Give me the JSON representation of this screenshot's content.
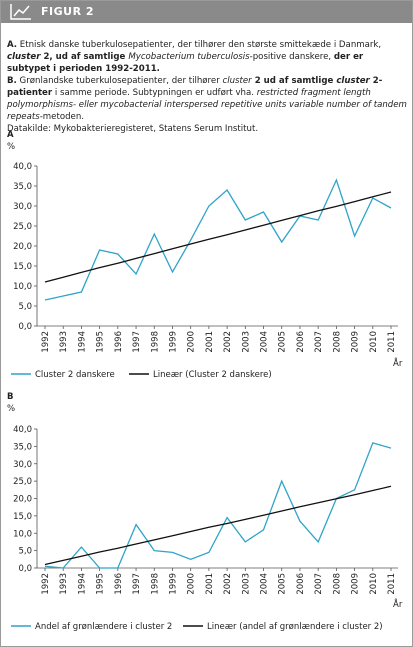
{
  "header": {
    "title": "FIGUR 2"
  },
  "caption": {
    "paragraphs": [
      {
        "runs": [
          {
            "text": "A.",
            "style": "bold"
          },
          {
            "text": " Etnisk danske tuberkulosepatienter, der tilhører den største smittekæde i Danmark, ",
            "style": "normal"
          },
          {
            "text": "cluster",
            "style": "bold-italic"
          },
          {
            "text": " 2, ud af samtlige ",
            "style": "bold"
          },
          {
            "text": "Mycobacterium tuberculosis",
            "style": "italic"
          },
          {
            "text": "-positive danskere, ",
            "style": "normal"
          },
          {
            "text": "der er subtypet i perioden 1992-2011.",
            "style": "bold"
          }
        ]
      },
      {
        "runs": [
          {
            "text": "B.",
            "style": "bold"
          },
          {
            "text": " Grønlandske tuberkulosepatienter, der tilhører ",
            "style": "normal"
          },
          {
            "text": "cluster",
            "style": "italic"
          },
          {
            "text": " 2 ud af samtlige ",
            "style": "bold"
          },
          {
            "text": "cluster",
            "style": "bold-italic"
          },
          {
            "text": " 2-patienter",
            "style": "bold"
          },
          {
            "text": " i samme periode. Subtypningen er udført vha. ",
            "style": "normal"
          },
          {
            "text": "restricted fragment length polymorphisms- eller mycobacterial interspersed repetitive units variable number of tandem repeats",
            "style": "italic"
          },
          {
            "text": "-metoden.",
            "style": "normal"
          }
        ]
      },
      {
        "runs": [
          {
            "text": "Datakilde: Mykobakterieregisteret, Statens Serum Institut.",
            "style": "normal"
          }
        ]
      }
    ]
  },
  "chart_data": [
    {
      "type": "line",
      "panel_label": "A",
      "y_label": "%",
      "x_label": "År",
      "categories": [
        "1992",
        "1993",
        "1994",
        "1995",
        "1996",
        "1997",
        "1998",
        "1999",
        "2000",
        "2001",
        "2002",
        "2003",
        "2004",
        "2005",
        "2006",
        "2007",
        "2008",
        "2009",
        "2010",
        "2011"
      ],
      "ylim": [
        0,
        40
      ],
      "yticks": [
        {
          "value": 0,
          "label": "0,0"
        },
        {
          "value": 5,
          "label": "5,0"
        },
        {
          "value": 10,
          "label": "10,0"
        },
        {
          "value": 15,
          "label": "15,0"
        },
        {
          "value": 20,
          "label": "20,0"
        },
        {
          "value": 25,
          "label": "25,0"
        },
        {
          "value": 30,
          "label": "30,0"
        },
        {
          "value": 35,
          "label": "35,0"
        },
        {
          "value": 40,
          "label": "40,0"
        }
      ],
      "series": [
        {
          "name": "Cluster 2 danskere",
          "color": "#2fa3c9",
          "values": [
            6.5,
            7.5,
            8.5,
            19,
            18,
            13,
            23,
            13.5,
            21.5,
            30,
            34,
            26.5,
            28.5,
            21,
            27.5,
            26.5,
            36.5,
            22.5,
            32,
            29.5
          ]
        },
        {
          "name": "Lineær (Cluster 2 danskere)",
          "color": "#111111",
          "values": [
            11.0,
            12.2,
            13.4,
            14.6,
            15.7,
            16.9,
            18.1,
            19.3,
            20.5,
            21.7,
            22.8,
            24.0,
            25.2,
            26.4,
            27.6,
            28.8,
            29.9,
            31.1,
            32.3,
            33.5
          ]
        }
      ]
    },
    {
      "type": "line",
      "panel_label": "B",
      "y_label": "%",
      "x_label": "År",
      "categories": [
        "1992",
        "1993",
        "1994",
        "1995",
        "1996",
        "1997",
        "1998",
        "1999",
        "2000",
        "2001",
        "2002",
        "2003",
        "2004",
        "2005",
        "2006",
        "2007",
        "2008",
        "2009",
        "2010",
        "2011"
      ],
      "ylim": [
        0,
        40
      ],
      "yticks": [
        {
          "value": 0,
          "label": "0,0"
        },
        {
          "value": 5,
          "label": "5,0"
        },
        {
          "value": 10,
          "label": "10,0"
        },
        {
          "value": 15,
          "label": "15,0"
        },
        {
          "value": 20,
          "label": "20,0"
        },
        {
          "value": 25,
          "label": "25,0"
        },
        {
          "value": 30,
          "label": "30,0"
        },
        {
          "value": 35,
          "label": "35,0"
        },
        {
          "value": 40,
          "label": "40,0"
        }
      ],
      "series": [
        {
          "name": "Andel af grønlændere i cluster 2",
          "color": "#2fa3c9",
          "values": [
            0.5,
            0,
            6,
            0,
            0,
            12.5,
            5,
            4.5,
            2.5,
            4.5,
            14.5,
            7.5,
            11,
            25,
            13.5,
            7.5,
            20,
            22.5,
            36,
            34.5
          ]
        },
        {
          "name": "Lineær (andel af grønlændere i cluster 2)",
          "color": "#111111",
          "values": [
            1.0,
            2.2,
            3.4,
            4.6,
            5.7,
            6.9,
            8.1,
            9.3,
            10.5,
            11.7,
            12.8,
            14.0,
            15.2,
            16.4,
            17.6,
            18.8,
            19.9,
            21.1,
            22.3,
            23.5
          ]
        }
      ]
    }
  ]
}
